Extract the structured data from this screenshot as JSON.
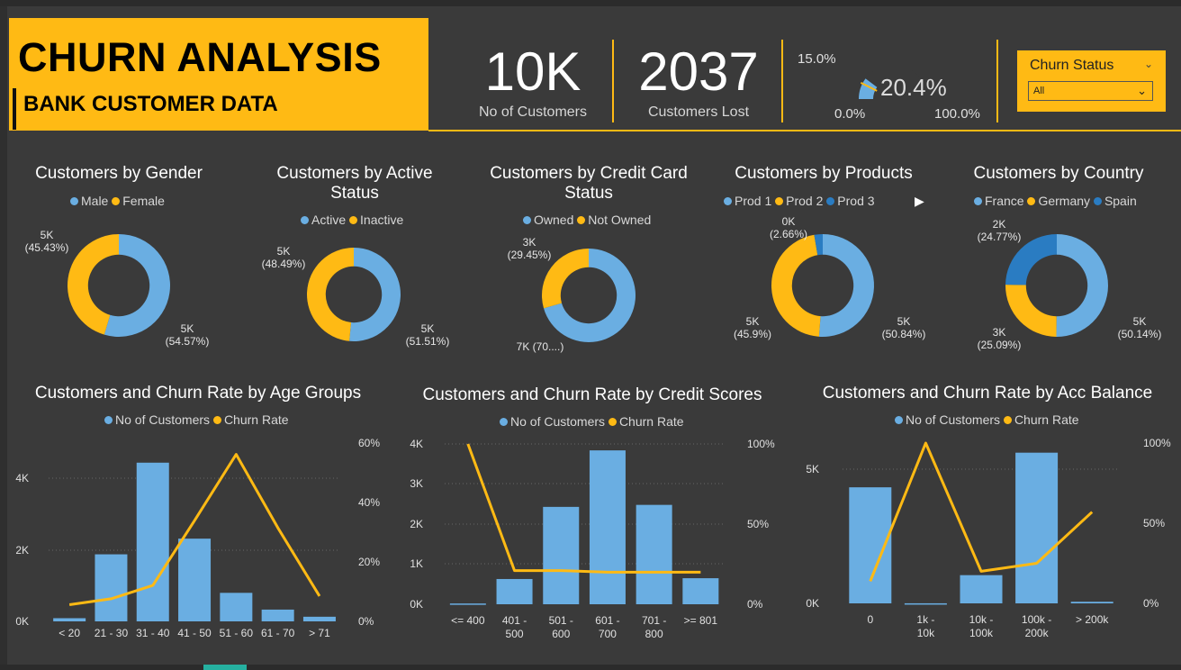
{
  "header": {
    "title": "CHURN ANALYSIS",
    "subtitle": "BANK CUSTOMER DATA"
  },
  "kpis": [
    {
      "value": "10K",
      "label": "No of Customers"
    },
    {
      "value": "2037",
      "label": "Customers Lost"
    }
  ],
  "gauge": {
    "value": "20.4%",
    "target": "15.0%",
    "min": "0.0%",
    "max": "100.0%",
    "value_num": 20.4,
    "target_num": 15.0
  },
  "slicer": {
    "title": "Churn Status",
    "selected": "All"
  },
  "colors": {
    "blue": "#6aaee2",
    "yellow": "#ffba14",
    "darkblue": "#2a7cc2"
  },
  "donuts": [
    {
      "title": "Customers by Gender",
      "legend": [
        "Male",
        "Female"
      ],
      "values": [
        54.57,
        45.43
      ],
      "labels": [
        {
          "line1": "5K",
          "line2": "(54.57%)"
        },
        {
          "line1": "5K",
          "line2": "(45.43%)"
        }
      ]
    },
    {
      "title": "Customers by Active Status",
      "legend": [
        "Active",
        "Inactive"
      ],
      "values": [
        51.51,
        48.49
      ],
      "labels": [
        {
          "line1": "5K",
          "line2": "(51.51%)"
        },
        {
          "line1": "5K",
          "line2": "(48.49%)"
        }
      ]
    },
    {
      "title": "Customers by Credit Card Status",
      "legend": [
        "Owned",
        "Not Owned"
      ],
      "values": [
        70.55,
        29.45
      ],
      "labels": [
        {
          "line1": "7K (70....)",
          "line2": ""
        },
        {
          "line1": "3K",
          "line2": "(29.45%)"
        }
      ]
    },
    {
      "title": "Customers by Products",
      "legend": [
        "Prod 1",
        "Prod 2",
        "Prod 3"
      ],
      "values": [
        50.84,
        45.9,
        2.66
      ],
      "labels": [
        {
          "line1": "5K",
          "line2": "(50.84%)"
        },
        {
          "line1": "5K",
          "line2": "(45.9%)"
        },
        {
          "line1": "0K",
          "line2": "(2.66%)"
        }
      ]
    },
    {
      "title": "Customers by Country",
      "legend": [
        "France",
        "Germany",
        "Spain"
      ],
      "values": [
        50.14,
        25.09,
        24.77
      ],
      "labels": [
        {
          "line1": "5K",
          "line2": "(50.14%)"
        },
        {
          "line1": "3K",
          "line2": "(25.09%)"
        },
        {
          "line1": "2K",
          "line2": "(24.77%)"
        }
      ]
    }
  ],
  "chart_data": [
    {
      "type": "bar",
      "title": "Customers and Churn Rate by Age Groups",
      "categories": [
        "< 20",
        "21 - 30",
        "31 - 40",
        "41 - 50",
        "51 - 60",
        "61 - 70",
        "> 71"
      ],
      "series": [
        {
          "name": "No of Customers",
          "type": "bar",
          "axis": "left",
          "values": [
            89,
            1880,
            4450,
            2320,
            800,
            330,
            130
          ]
        },
        {
          "name": "Churn Rate",
          "type": "line",
          "axis": "right",
          "values": [
            5.6,
            7.6,
            12.1,
            33.9,
            56.2,
            31.5,
            8.5
          ]
        }
      ],
      "yticks": [
        "0K",
        "2K",
        "4K"
      ],
      "y2ticks": [
        "0%",
        "20%",
        "40%",
        "60%"
      ],
      "ylim": [
        0,
        5000
      ],
      "y2lim": [
        0,
        60
      ]
    },
    {
      "type": "bar",
      "title": "Customers and Churn Rate by Credit Scores",
      "categories": [
        "<= 400",
        "401 - 500",
        "501 - 600",
        "601 - 700",
        "701 - 800",
        ">= 801"
      ],
      "series": [
        {
          "name": "No of Customers",
          "type": "bar",
          "axis": "left",
          "values": [
            19,
            630,
            2430,
            3840,
            2480,
            650
          ]
        },
        {
          "name": "Churn Rate",
          "type": "line",
          "axis": "right",
          "values": [
            100,
            21,
            21,
            20,
            20,
            20
          ]
        }
      ],
      "yticks": [
        "0K",
        "1K",
        "2K",
        "3K",
        "4K"
      ],
      "y2ticks": [
        "0%",
        "50%",
        "100%"
      ],
      "ylim": [
        0,
        4000
      ],
      "y2lim": [
        0,
        100
      ]
    },
    {
      "type": "bar",
      "title": "Customers and Churn Rate by Acc Balance",
      "categories": [
        "0",
        "1k - 10k",
        "10k - 100k",
        "100k - 200k",
        "> 200k"
      ],
      "series": [
        {
          "name": "No of Customers",
          "type": "bar",
          "axis": "left",
          "values": [
            3620,
            2,
            880,
            4700,
            50
          ]
        },
        {
          "name": "Churn Rate",
          "type": "line",
          "axis": "right",
          "values": [
            13.8,
            100,
            20,
            25,
            57
          ]
        }
      ],
      "yticks": [
        "0K",
        "5K"
      ],
      "y2ticks": [
        "0%",
        "50%",
        "100%"
      ],
      "ylim": [
        0,
        5000
      ],
      "y2lim": [
        0,
        100
      ]
    }
  ]
}
